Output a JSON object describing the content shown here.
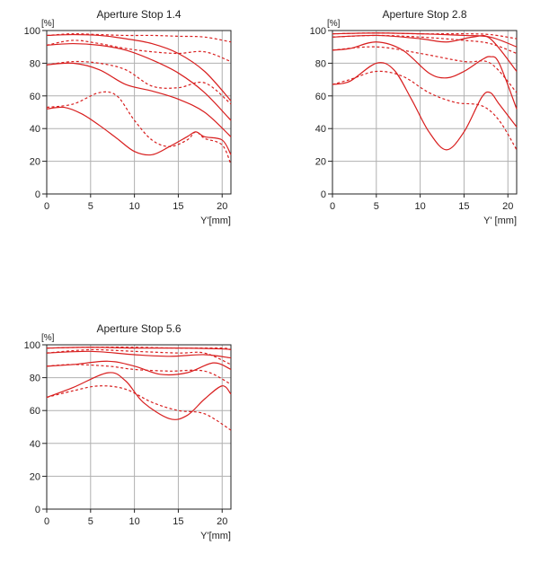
{
  "colors": {
    "curve": "#d81e1e",
    "grid": "#b0b0b0",
    "axis": "#222222"
  },
  "chart_data": [
    {
      "type": "line",
      "title": "Aperture Stop 1.4",
      "xlabel": "Y'[mm]",
      "ylabel": "[%]",
      "xlim": [
        0,
        21
      ],
      "ylim": [
        0,
        100
      ],
      "xticks": [
        0,
        5,
        10,
        15,
        20
      ],
      "yticks": [
        0,
        20,
        40,
        60,
        80,
        100
      ],
      "grid": true,
      "series": [
        {
          "style": "solid",
          "x": [
            0,
            3,
            6,
            9,
            12,
            15,
            18,
            21
          ],
          "y": [
            97,
            97.5,
            97,
            95,
            92,
            86,
            75,
            57
          ]
        },
        {
          "style": "dashed",
          "x": [
            0,
            3,
            6,
            9,
            12,
            15,
            18,
            21
          ],
          "y": [
            97,
            98,
            97.5,
            97,
            97,
            96.5,
            96,
            93
          ]
        },
        {
          "style": "solid",
          "x": [
            0,
            3,
            6,
            9,
            12,
            15,
            18,
            21
          ],
          "y": [
            91,
            92,
            91,
            88,
            82,
            74,
            62,
            45
          ]
        },
        {
          "style": "dashed",
          "x": [
            0,
            3,
            6,
            9,
            12,
            15,
            18,
            21
          ],
          "y": [
            91,
            94,
            92,
            89,
            87,
            86,
            87,
            81
          ]
        },
        {
          "style": "solid",
          "x": [
            0,
            3,
            6,
            9,
            12,
            15,
            18,
            21
          ],
          "y": [
            79,
            80,
            76,
            67,
            63,
            58,
            50,
            35
          ]
        },
        {
          "style": "dashed",
          "x": [
            0,
            3,
            6,
            9,
            12,
            15,
            18,
            21
          ],
          "y": [
            79,
            81,
            80,
            76,
            66,
            65,
            68,
            55
          ]
        },
        {
          "style": "solid",
          "x": [
            0,
            2,
            4,
            6,
            8,
            10,
            12,
            14,
            16,
            17,
            18,
            20,
            21
          ],
          "y": [
            52,
            53,
            49,
            42,
            34,
            26,
            24,
            29,
            35,
            38,
            35,
            33,
            24
          ]
        },
        {
          "style": "dashed",
          "x": [
            0,
            3,
            6,
            8,
            10,
            12,
            14,
            16,
            17,
            18,
            20,
            21
          ],
          "y": [
            53,
            55,
            62,
            60,
            45,
            33,
            29,
            33,
            38,
            34,
            30,
            18
          ]
        }
      ]
    },
    {
      "type": "line",
      "title": "Aperture Stop 2.8",
      "xlabel": "Y' [mm]",
      "ylabel": "[%]",
      "xlim": [
        0,
        21
      ],
      "ylim": [
        0,
        100
      ],
      "xticks": [
        0,
        5,
        10,
        15,
        20
      ],
      "yticks": [
        0,
        20,
        40,
        60,
        80,
        100
      ],
      "grid": true,
      "series": [
        {
          "style": "solid",
          "x": [
            0,
            5,
            10,
            15,
            18,
            21
          ],
          "y": [
            98,
            98.5,
            98,
            97,
            96,
            90
          ]
        },
        {
          "style": "dashed",
          "x": [
            0,
            5,
            10,
            15,
            18,
            21
          ],
          "y": [
            98,
            98.5,
            98,
            98,
            97.5,
            95
          ]
        },
        {
          "style": "solid",
          "x": [
            0,
            5,
            10,
            13,
            16,
            18,
            21
          ],
          "y": [
            96,
            97,
            95,
            93,
            96,
            95,
            75
          ]
        },
        {
          "style": "dashed",
          "x": [
            0,
            5,
            10,
            15,
            18,
            21
          ],
          "y": [
            96,
            97,
            96,
            94,
            92,
            86
          ]
        },
        {
          "style": "solid",
          "x": [
            0,
            2,
            5,
            8,
            11,
            13,
            15,
            17,
            18,
            19,
            21
          ],
          "y": [
            88,
            89,
            93,
            88,
            74,
            71,
            75,
            82,
            84,
            80,
            52
          ]
        },
        {
          "style": "dashed",
          "x": [
            0,
            5,
            10,
            15,
            18,
            21
          ],
          "y": [
            88,
            90,
            86,
            81,
            80,
            62
          ]
        },
        {
          "style": "solid",
          "x": [
            0,
            2,
            5,
            7,
            9,
            11,
            13,
            15,
            17,
            18,
            19,
            21
          ],
          "y": [
            67,
            69,
            80,
            76,
            58,
            38,
            27,
            38,
            59,
            62,
            55,
            41
          ]
        },
        {
          "style": "dashed",
          "x": [
            0,
            2,
            5,
            8,
            11,
            14,
            17,
            19,
            21
          ],
          "y": [
            67,
            70,
            75,
            72,
            62,
            56,
            54,
            45,
            27
          ]
        }
      ]
    },
    {
      "type": "line",
      "title": "Aperture Stop 5.6",
      "xlabel": "Y'[mm]",
      "ylabel": "[%]",
      "xlim": [
        0,
        21
      ],
      "ylim": [
        0,
        100
      ],
      "xticks": [
        0,
        5,
        10,
        15,
        20
      ],
      "yticks": [
        0,
        20,
        40,
        60,
        80,
        100
      ],
      "grid": true,
      "series": [
        {
          "style": "solid",
          "x": [
            0,
            5,
            10,
            15,
            20,
            21
          ],
          "y": [
            98,
            98.5,
            98,
            98,
            97.5,
            97
          ]
        },
        {
          "style": "dashed",
          "x": [
            0,
            5,
            10,
            15,
            20,
            21
          ],
          "y": [
            98,
            98.5,
            98.5,
            98,
            98,
            97
          ]
        },
        {
          "style": "solid",
          "x": [
            0,
            5,
            10,
            14,
            18,
            21
          ],
          "y": [
            95,
            96,
            94,
            93,
            94,
            92
          ]
        },
        {
          "style": "dashed",
          "x": [
            0,
            5,
            10,
            15,
            18,
            21
          ],
          "y": [
            95,
            97,
            96,
            95,
            95,
            88
          ]
        },
        {
          "style": "solid",
          "x": [
            0,
            3,
            7,
            10,
            13,
            16,
            19,
            21
          ],
          "y": [
            87,
            88,
            90,
            87,
            82,
            83,
            89,
            85
          ]
        },
        {
          "style": "dashed",
          "x": [
            0,
            3,
            7,
            10,
            14,
            18,
            21
          ],
          "y": [
            87,
            88,
            87,
            85,
            84,
            84,
            76
          ]
        },
        {
          "style": "solid",
          "x": [
            0,
            3,
            7,
            9,
            11,
            14,
            16,
            18,
            20,
            21
          ],
          "y": [
            68,
            74,
            83,
            78,
            65,
            55,
            57,
            67,
            75,
            70
          ]
        },
        {
          "style": "dashed",
          "x": [
            0,
            3,
            6,
            9,
            12,
            15,
            18,
            21
          ],
          "y": [
            68,
            72,
            75,
            73,
            65,
            60,
            58,
            48
          ]
        }
      ]
    }
  ]
}
